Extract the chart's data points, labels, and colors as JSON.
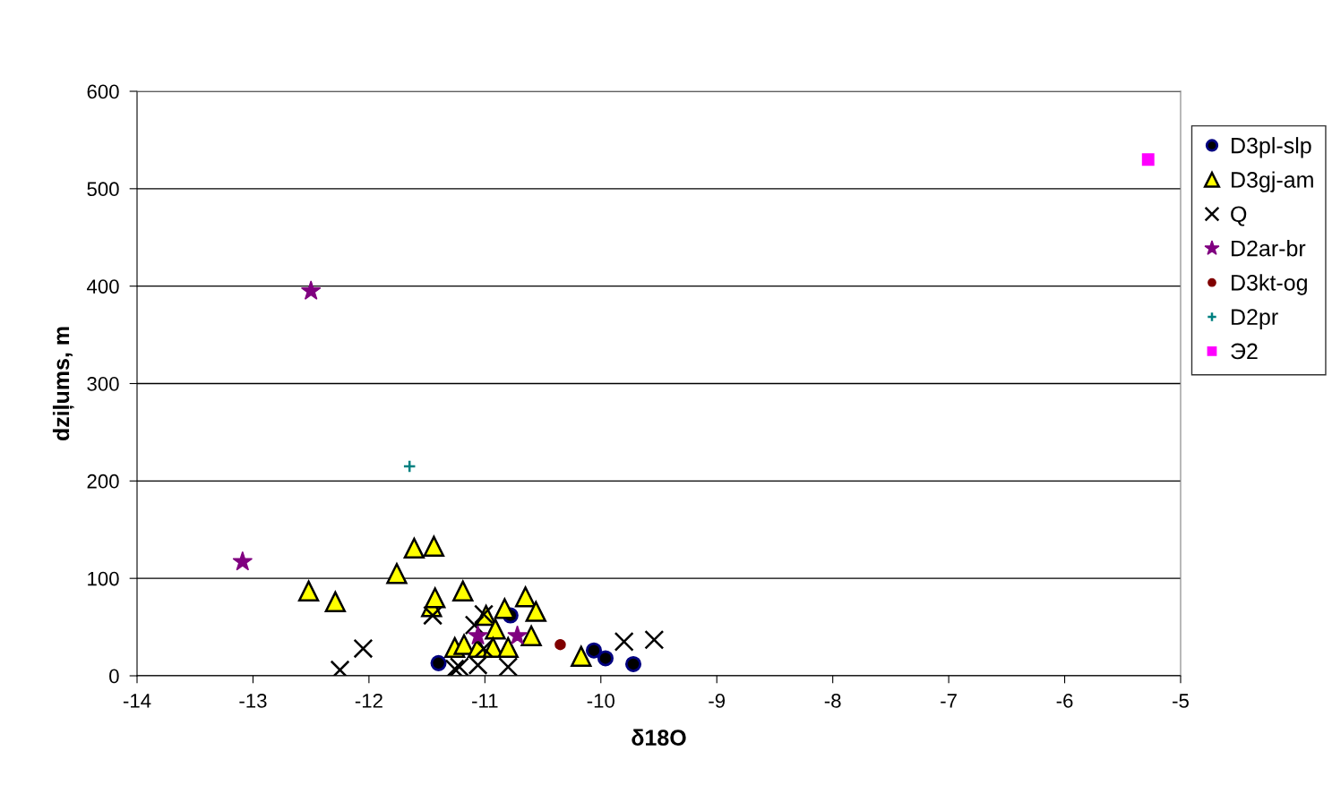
{
  "chart_data": {
    "type": "scatter",
    "xlabel": "δ18O",
    "ylabel": "dziļums, m",
    "xlim": [
      -14,
      -5
    ],
    "xticks": [
      -14,
      -13,
      -12,
      -11,
      -10,
      -9,
      -8,
      -7,
      -6,
      -5
    ],
    "ylim": [
      0,
      600
    ],
    "yticks": [
      0,
      100,
      200,
      300,
      400,
      500,
      600
    ],
    "grid": "y",
    "legend": "right",
    "series": [
      {
        "name": "D3pl-slp",
        "color": "#000000",
        "marker": "circle",
        "x": [
          -11.4,
          -10.78,
          -10.06,
          -9.96,
          -9.72
        ],
        "values": [
          13,
          62,
          26,
          18,
          12
        ]
      },
      {
        "name": "D3gj-am",
        "color": "#ffff00",
        "marker": "triangle",
        "x": [
          -12.52,
          -12.29,
          -11.76,
          -11.61,
          -11.44,
          -11.46,
          -11.43,
          -11.19,
          -10.99,
          -10.83,
          -10.65,
          -10.56,
          -10.6,
          -10.91,
          -11.26,
          -11.18,
          -11.06,
          -10.93,
          -10.8,
          -10.17
        ],
        "values": [
          87,
          76,
          105,
          131,
          133,
          71,
          80,
          87,
          62,
          69,
          81,
          66,
          41,
          48,
          29,
          32,
          29,
          29,
          29,
          20
        ]
      },
      {
        "name": "Q",
        "color": "#000000",
        "marker": "cross",
        "x": [
          -12.25,
          -12.05,
          -11.45,
          -11.01,
          -11.09,
          -11.26,
          -11.22,
          -11.06,
          -10.8,
          -11.01,
          -9.8,
          -9.54
        ],
        "values": [
          6,
          28,
          62,
          63,
          52,
          7,
          9,
          11,
          9,
          28,
          35,
          37
        ]
      },
      {
        "name": "D2ar-br",
        "color": "#800080",
        "marker": "star",
        "x": [
          -13.09,
          -12.5,
          -11.06,
          -10.72
        ],
        "values": [
          117,
          395,
          41,
          41
        ]
      },
      {
        "name": "D3kt-og",
        "color": "#800000",
        "marker": "circle",
        "x": [
          -10.35
        ],
        "values": [
          32
        ]
      },
      {
        "name": "D2pr",
        "color": "#008080",
        "marker": "plus",
        "x": [
          -11.65
        ],
        "values": [
          215
        ]
      },
      {
        "name": "Э2",
        "color": "#ff00ff",
        "marker": "square",
        "x": [
          -5.28
        ],
        "values": [
          530
        ]
      }
    ]
  }
}
